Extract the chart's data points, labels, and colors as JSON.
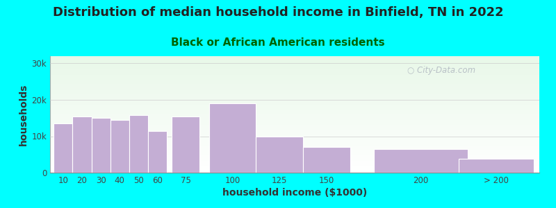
{
  "title": "Distribution of median household income in Binfield, TN in 2022",
  "subtitle": "Black or African American residents",
  "xlabel": "household income ($1000)",
  "ylabel": "households",
  "background_outer": "#00FFFF",
  "background_inner_top": "#e8f5e9",
  "background_inner_bottom": "#ffffff",
  "bar_color": "#c4aed4",
  "bar_edge_color": "#ffffff",
  "categories": [
    "10",
    "20",
    "30",
    "40",
    "50",
    "60",
    "75",
    "100",
    "125",
    "150",
    "200",
    "> 200"
  ],
  "values": [
    13500,
    15500,
    15000,
    14500,
    15800,
    11500,
    15500,
    19000,
    10000,
    7000,
    6500,
    3800
  ],
  "bar_positions": [
    10,
    20,
    30,
    40,
    50,
    60,
    75,
    100,
    125,
    150,
    200,
    240
  ],
  "actual_widths": [
    10,
    10,
    10,
    10,
    10,
    10,
    15,
    25,
    25,
    25,
    50,
    40
  ],
  "ylim": [
    0,
    32000
  ],
  "yticks": [
    0,
    10000,
    20000,
    30000
  ],
  "ytick_labels": [
    "0",
    "10k",
    "20k",
    "30k"
  ],
  "title_fontsize": 13,
  "subtitle_fontsize": 11,
  "axis_label_fontsize": 10,
  "tick_fontsize": 8.5,
  "watermark_text": "City-Data.com",
  "watermark_color": "#b0b8c0",
  "title_color": "#222222",
  "subtitle_color": "#006400",
  "axis_label_color": "#333333",
  "tick_color": "#444444"
}
